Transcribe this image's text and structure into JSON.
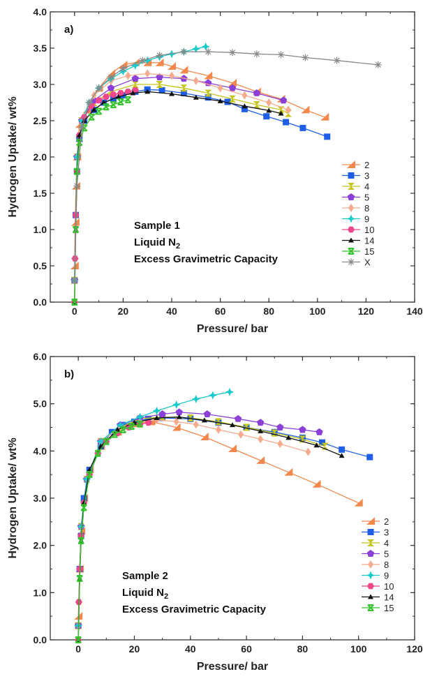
{
  "chart_data": [
    {
      "type": "line",
      "panel_label": "a)",
      "xlabel": "Pressure/ bar",
      "ylabel": "Hydrogen Uptake/ wt%",
      "xlim": [
        -10,
        140
      ],
      "ylim": [
        0,
        4.0
      ],
      "x_ticks": [
        "0",
        "20",
        "40",
        "60",
        "80",
        "100",
        "120",
        "140"
      ],
      "y_ticks": [
        "0.0",
        "0.5",
        "1.0",
        "1.5",
        "2.0",
        "2.5",
        "3.0",
        "3.5",
        "4.0"
      ],
      "annotation": {
        "line1": "Sample 1",
        "line2_main": "Liquid N",
        "line2_sub": "2",
        "line3": "Excess Gravimetric Capacity"
      },
      "legend_placement": "lower-right",
      "series": [
        {
          "name": "2",
          "color": "#f4874b",
          "marker": "triangle",
          "x": [
            0,
            0.3,
            0.6,
            1,
            2,
            5,
            10,
            15,
            20,
            25,
            30,
            35,
            40,
            45,
            55,
            65,
            75,
            85,
            95,
            103
          ],
          "y": [
            0.5,
            1.1,
            1.6,
            2.0,
            2.45,
            2.65,
            2.95,
            3.15,
            3.27,
            3.3,
            3.3,
            3.3,
            3.25,
            3.2,
            3.12,
            3.02,
            2.9,
            2.8,
            2.65,
            2.55
          ]
        },
        {
          "name": "3",
          "color": "#1f5fe8",
          "marker": "square",
          "x": [
            0,
            0.5,
            1,
            2,
            4,
            8,
            12,
            16,
            20,
            25,
            30,
            36,
            45,
            55,
            63,
            70,
            79,
            87,
            94,
            104
          ],
          "y": [
            0.3,
            1.2,
            1.8,
            2.25,
            2.5,
            2.65,
            2.75,
            2.8,
            2.85,
            2.9,
            2.93,
            2.92,
            2.88,
            2.82,
            2.76,
            2.66,
            2.56,
            2.48,
            2.4,
            2.28
          ]
        },
        {
          "name": "4",
          "color": "#c4c41a",
          "marker": "hourglass",
          "x": [
            0,
            1,
            3,
            8,
            15,
            25,
            35,
            45,
            55,
            65,
            75,
            85,
            88
          ],
          "y": [
            0.3,
            2.0,
            2.5,
            2.75,
            2.9,
            3.0,
            3.0,
            2.95,
            2.88,
            2.8,
            2.72,
            2.65,
            2.6
          ]
        },
        {
          "name": "5",
          "color": "#8a3fd6",
          "marker": "pentagon",
          "x": [
            0,
            1,
            3,
            8,
            15,
            25,
            35,
            45,
            55,
            65,
            75,
            86
          ],
          "y": [
            0.3,
            2.0,
            2.5,
            2.78,
            2.95,
            3.08,
            3.1,
            3.08,
            3.02,
            2.95,
            2.88,
            2.78
          ]
        },
        {
          "name": "8",
          "color": "#f7ab8e",
          "marker": "diamond",
          "x": [
            0,
            1,
            3,
            8,
            15,
            22,
            30,
            40,
            50,
            60,
            70,
            80,
            88
          ],
          "y": [
            0.3,
            2.0,
            2.5,
            2.85,
            3.05,
            3.12,
            3.15,
            3.12,
            3.05,
            2.95,
            2.85,
            2.75,
            2.65
          ]
        },
        {
          "name": "9",
          "color": "#17c9cb",
          "marker": "star4",
          "x": [
            0,
            1,
            3,
            6,
            10,
            15,
            20,
            25,
            30,
            35,
            40,
            45,
            50,
            54
          ],
          "y": [
            0.3,
            2.0,
            2.5,
            2.75,
            2.95,
            3.08,
            3.18,
            3.26,
            3.33,
            3.38,
            3.42,
            3.45,
            3.49,
            3.52
          ]
        },
        {
          "name": "10",
          "color": "#f0468b",
          "marker": "hexagon",
          "x": [
            0,
            0.2,
            0.5,
            1,
            2,
            4,
            7,
            10,
            13,
            16,
            19,
            22,
            25
          ],
          "y": [
            0.0,
            0.6,
            1.2,
            1.8,
            2.3,
            2.55,
            2.7,
            2.78,
            2.83,
            2.86,
            2.88,
            2.9,
            2.92
          ]
        },
        {
          "name": "14",
          "color": "#111111",
          "marker": "triangle-small",
          "x": [
            0,
            0.5,
            1,
            2,
            4,
            8,
            12,
            18,
            24,
            30,
            40,
            50,
            60,
            70,
            80,
            85
          ],
          "y": [
            0.0,
            1.0,
            1.8,
            2.3,
            2.5,
            2.65,
            2.75,
            2.83,
            2.88,
            2.9,
            2.87,
            2.82,
            2.77,
            2.7,
            2.64,
            2.6
          ]
        },
        {
          "name": "15",
          "color": "#35c42c",
          "marker": "x-box",
          "x": [
            0,
            0.5,
            1,
            2,
            4,
            7,
            10,
            13,
            16,
            19,
            22
          ],
          "y": [
            0.0,
            1.0,
            1.8,
            2.2,
            2.4,
            2.55,
            2.63,
            2.69,
            2.72,
            2.76,
            2.79
          ]
        },
        {
          "name": "X",
          "color": "#888888",
          "marker": "asterisk",
          "x": [
            0,
            1,
            3,
            6,
            10,
            15,
            20,
            28,
            35,
            45,
            55,
            65,
            75,
            85,
            95,
            108,
            125
          ],
          "y": [
            0.3,
            1.6,
            2.4,
            2.75,
            2.95,
            3.1,
            3.22,
            3.33,
            3.4,
            3.45,
            3.45,
            3.44,
            3.42,
            3.41,
            3.37,
            3.33,
            3.27
          ]
        }
      ]
    },
    {
      "type": "line",
      "panel_label": "b)",
      "xlabel": "Pressure/ bar",
      "ylabel": "Hydrogen Uptake/ wt%",
      "xlim": [
        -10,
        120
      ],
      "ylim": [
        0,
        6.0
      ],
      "x_ticks": [
        "0",
        "20",
        "40",
        "60",
        "80",
        "100",
        "120"
      ],
      "y_ticks": [
        "0.0",
        "1.0",
        "2.0",
        "3.0",
        "4.0",
        "5.0",
        "6.0"
      ],
      "annotation": {
        "line1": "Sample 2",
        "line2_main": "Liquid N",
        "line2_sub": "2",
        "line3": "Excess Gravimetric Capacity"
      },
      "legend_placement": "lower-right",
      "series": [
        {
          "name": "2",
          "color": "#f4874b",
          "marker": "triangle",
          "x": [
            0,
            0.5,
            1,
            2,
            4,
            8,
            14,
            20,
            26,
            35,
            45,
            55,
            65,
            75,
            85,
            100
          ],
          "y": [
            0.5,
            1.5,
            2.3,
            3.0,
            3.6,
            4.1,
            4.4,
            4.58,
            4.62,
            4.5,
            4.3,
            4.05,
            3.8,
            3.55,
            3.3,
            2.9
          ]
        },
        {
          "name": "3",
          "color": "#1f5fe8",
          "marker": "square",
          "x": [
            0,
            0.5,
            1,
            2,
            4,
            8,
            12,
            16,
            20,
            25,
            30,
            40,
            50,
            60,
            70,
            80,
            87,
            94,
            104
          ],
          "y": [
            0.3,
            1.5,
            2.2,
            3.0,
            3.6,
            4.1,
            4.4,
            4.55,
            4.62,
            4.68,
            4.7,
            4.68,
            4.6,
            4.5,
            4.4,
            4.28,
            4.18,
            4.03,
            3.87
          ]
        },
        {
          "name": "4",
          "color": "#c4c41a",
          "marker": "hourglass",
          "x": [
            0,
            1,
            3,
            8,
            15,
            22,
            30,
            40,
            50,
            60,
            70,
            80,
            88
          ],
          "y": [
            0.3,
            2.4,
            3.4,
            4.2,
            4.5,
            4.68,
            4.72,
            4.7,
            4.62,
            4.5,
            4.38,
            4.25,
            4.1
          ]
        },
        {
          "name": "5",
          "color": "#8a3fd6",
          "marker": "pentagon",
          "x": [
            0,
            1,
            3,
            8,
            15,
            22,
            30,
            36,
            46,
            57,
            65,
            72,
            80,
            86
          ],
          "y": [
            0.3,
            2.4,
            3.4,
            4.2,
            4.55,
            4.7,
            4.78,
            4.82,
            4.78,
            4.68,
            4.6,
            4.5,
            4.45,
            4.4
          ]
        },
        {
          "name": "8",
          "color": "#f7ab8e",
          "marker": "diamond",
          "x": [
            0,
            1,
            3,
            8,
            15,
            22,
            28,
            35,
            42,
            50,
            58,
            65,
            72,
            82
          ],
          "y": [
            0.3,
            2.4,
            3.4,
            4.2,
            4.5,
            4.62,
            4.66,
            4.62,
            4.56,
            4.45,
            4.35,
            4.25,
            4.15,
            3.98
          ]
        },
        {
          "name": "9",
          "color": "#17c9cb",
          "marker": "star4",
          "x": [
            0,
            1,
            3,
            8,
            15,
            22,
            28,
            35,
            42,
            48,
            54
          ],
          "y": [
            0.3,
            2.4,
            3.4,
            4.2,
            4.55,
            4.72,
            4.85,
            4.98,
            5.1,
            5.18,
            5.25
          ]
        },
        {
          "name": "10",
          "color": "#f0468b",
          "marker": "hexagon",
          "x": [
            0,
            0.2,
            0.5,
            1,
            2,
            4,
            7,
            10,
            14,
            18,
            22,
            25
          ],
          "y": [
            0.0,
            0.8,
            1.5,
            2.2,
            2.9,
            3.5,
            3.95,
            4.2,
            4.38,
            4.5,
            4.57,
            4.6
          ]
        },
        {
          "name": "14",
          "color": "#111111",
          "marker": "triangle-small",
          "x": [
            0,
            0.5,
            1,
            2,
            4,
            8,
            14,
            20,
            28,
            36,
            45,
            55,
            65,
            75,
            85,
            94
          ],
          "y": [
            0.0,
            1.3,
            2.1,
            2.9,
            3.6,
            4.1,
            4.45,
            4.6,
            4.7,
            4.72,
            4.65,
            4.55,
            4.42,
            4.28,
            4.12,
            3.9
          ]
        },
        {
          "name": "15",
          "color": "#35c42c",
          "marker": "x-box",
          "x": [
            0,
            0.5,
            1,
            2,
            4,
            7,
            10,
            13,
            16,
            19,
            22
          ],
          "y": [
            0.0,
            1.3,
            2.1,
            2.8,
            3.5,
            3.95,
            4.2,
            4.35,
            4.45,
            4.52,
            4.57
          ]
        }
      ]
    }
  ]
}
